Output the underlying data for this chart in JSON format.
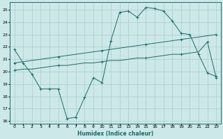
{
  "background_color": "#cde8e8",
  "grid_color": "#aacccc",
  "line_color": "#1a6b6b",
  "xlabel": "Humidex (Indice chaleur)",
  "xlim": [
    -0.5,
    23.5
  ],
  "ylim": [
    15.8,
    25.6
  ],
  "yticks": [
    16,
    17,
    18,
    19,
    20,
    21,
    22,
    23,
    24,
    25
  ],
  "xticks": [
    0,
    1,
    2,
    3,
    4,
    5,
    6,
    7,
    8,
    9,
    10,
    11,
    12,
    13,
    14,
    15,
    16,
    17,
    18,
    19,
    20,
    21,
    22,
    23
  ],
  "series1_x": [
    0,
    1,
    2,
    3,
    4,
    5,
    6,
    7,
    8,
    9,
    10,
    11,
    12,
    13,
    14,
    15,
    16,
    17,
    18,
    19,
    20,
    21,
    22,
    23
  ],
  "series1_y": [
    21.8,
    20.7,
    19.8,
    18.6,
    18.6,
    18.6,
    16.2,
    16.3,
    17.9,
    19.5,
    19.1,
    22.5,
    24.8,
    24.9,
    24.4,
    25.2,
    25.1,
    24.9,
    24.1,
    23.1,
    23.0,
    21.4,
    19.9,
    19.6
  ],
  "series2_x": [
    0,
    1,
    2,
    3,
    4,
    5,
    6,
    7,
    8,
    9,
    10,
    11,
    12,
    13,
    14,
    15,
    16,
    17,
    18,
    19,
    20,
    21,
    22,
    23
  ],
  "series2_y": [
    20.7,
    20.8,
    20.9,
    21.0,
    21.1,
    21.2,
    21.3,
    21.4,
    21.5,
    21.6,
    21.7,
    21.8,
    21.9,
    22.0,
    22.1,
    22.2,
    22.3,
    22.4,
    22.5,
    22.6,
    22.7,
    22.8,
    22.9,
    23.0
  ],
  "series3_x": [
    0,
    1,
    2,
    3,
    4,
    5,
    6,
    7,
    8,
    9,
    10,
    11,
    12,
    13,
    14,
    15,
    16,
    17,
    18,
    19,
    20,
    21,
    22,
    23
  ],
  "series3_y": [
    20.1,
    20.2,
    20.2,
    20.3,
    20.4,
    20.5,
    20.5,
    20.6,
    20.7,
    20.7,
    20.8,
    20.9,
    20.9,
    21.0,
    21.1,
    21.1,
    21.2,
    21.3,
    21.4,
    21.4,
    21.5,
    21.6,
    22.4,
    19.5
  ]
}
